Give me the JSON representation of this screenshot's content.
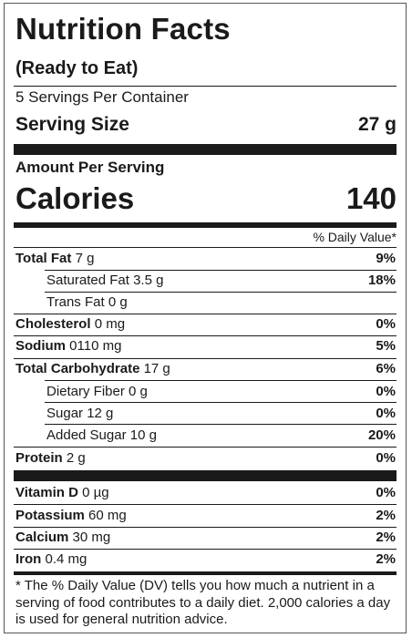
{
  "title": "Nutrition Facts",
  "subtitle": "(Ready to Eat)",
  "servings_per_container": "5 Servings Per Container",
  "serving_size_label": "Serving Size",
  "serving_size_value": "27 g",
  "amount_per_serving": "Amount Per Serving",
  "calories_label": "Calories",
  "calories_value": "140",
  "dv_header": "% Daily Value*",
  "nutrients": [
    {
      "name": "Total Fat",
      "amount": "7 g",
      "dv": "9%"
    },
    {
      "name": "Saturated Fat",
      "amount": "3.5 g",
      "dv": "18%"
    },
    {
      "name": "Trans Fat",
      "amount": "0 g",
      "dv": ""
    },
    {
      "name": "Cholesterol",
      "amount": "0 mg",
      "dv": "0%"
    },
    {
      "name": "Sodium",
      "amount": "0110 mg",
      "dv": "5%"
    },
    {
      "name": "Total Carbohydrate",
      "amount": "17 g",
      "dv": "6%"
    },
    {
      "name": "Dietary Fiber",
      "amount": "0 g",
      "dv": "0%"
    },
    {
      "name": "Sugar",
      "amount": "12 g",
      "dv": "0%"
    },
    {
      "name": "Added Sugar",
      "amount": "10 g",
      "dv": "20%"
    },
    {
      "name": "Protein",
      "amount": "2 g",
      "dv": "0%"
    }
  ],
  "vitamins": [
    {
      "name": "Vitamin D",
      "amount": "0 µg",
      "dv": "0%"
    },
    {
      "name": "Potassium",
      "amount": "60 mg",
      "dv": "2%"
    },
    {
      "name": "Calcium",
      "amount": "30 mg",
      "dv": "2%"
    },
    {
      "name": "Iron",
      "amount": "0.4 mg",
      "dv": "2%"
    }
  ],
  "footnote": "* The % Daily Value (DV) tells you how much a nutrient in a serving of food contributes to a daily diet. 2,000 calories a day is used for general nutrition advice."
}
